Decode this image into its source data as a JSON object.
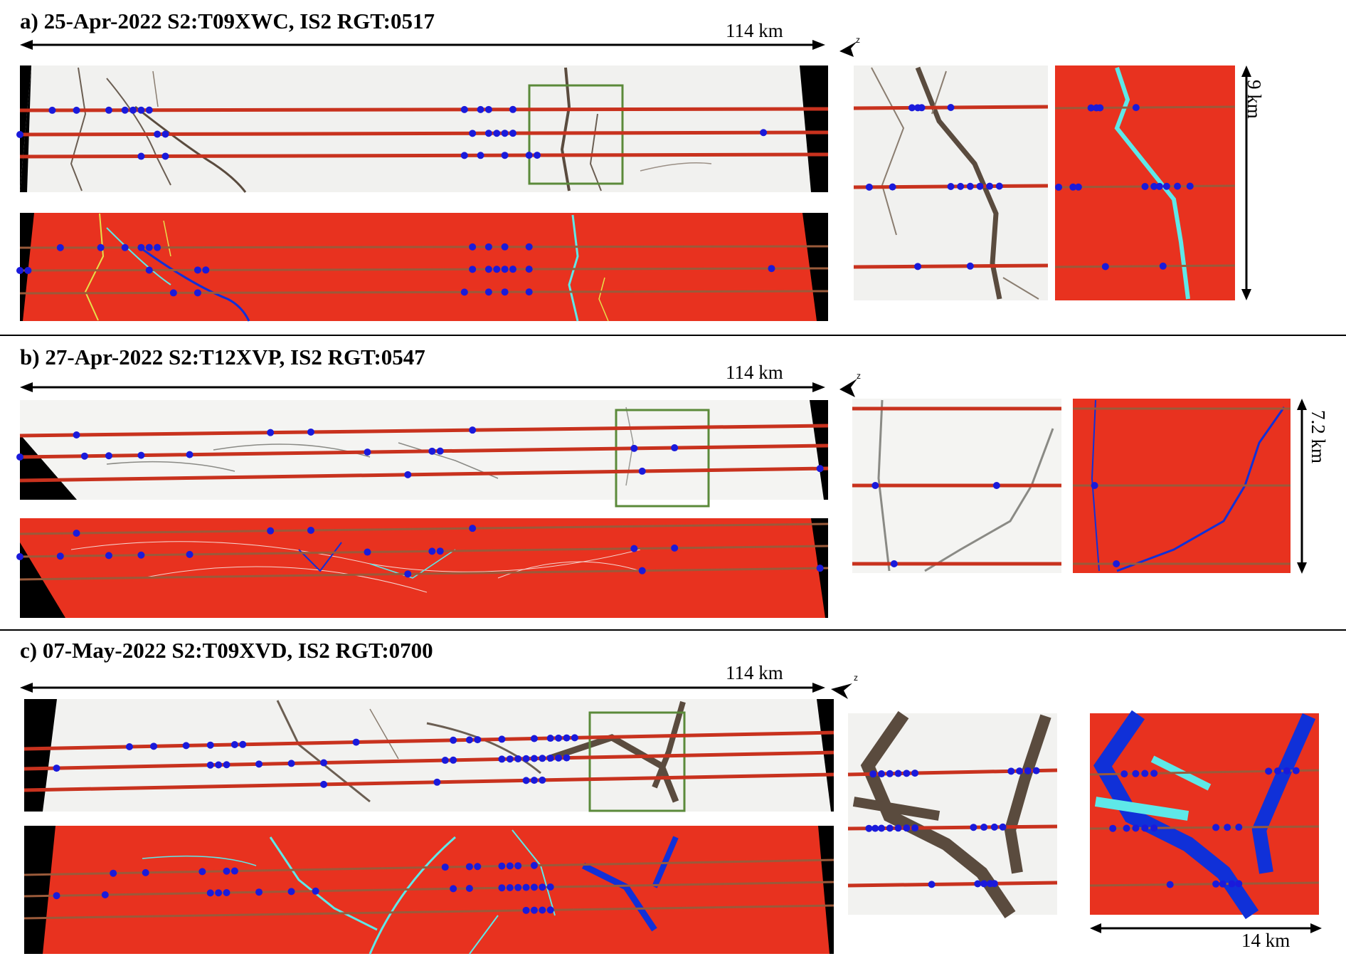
{
  "panels": [
    {
      "title": "a) 25-Apr-2022 S2:T09XWC, IS2 RGT:0517",
      "scale_main": "114 km",
      "scale_zoom": "9 km",
      "north_label": "z",
      "colors": {
        "water": "#e8321f",
        "lead": "#5ee8e8",
        "deep": "#1030d8",
        "track": "#c8321e",
        "dot": "#1a1adb",
        "box": "#5b8a3a",
        "ice": "#f2f2f0",
        "crack": "#6b5e52"
      }
    },
    {
      "title": "b) 27-Apr-2022 S2:T12XVP, IS2 RGT:0547",
      "scale_main": "114 km",
      "scale_zoom": "7.2 km",
      "north_label": "z"
    },
    {
      "title": "c) 07-May-2022 S2:T09XVD, IS2 RGT:0700",
      "scale_main": "114 km",
      "scale_zoom": "14 km",
      "north_label": "z"
    }
  ]
}
